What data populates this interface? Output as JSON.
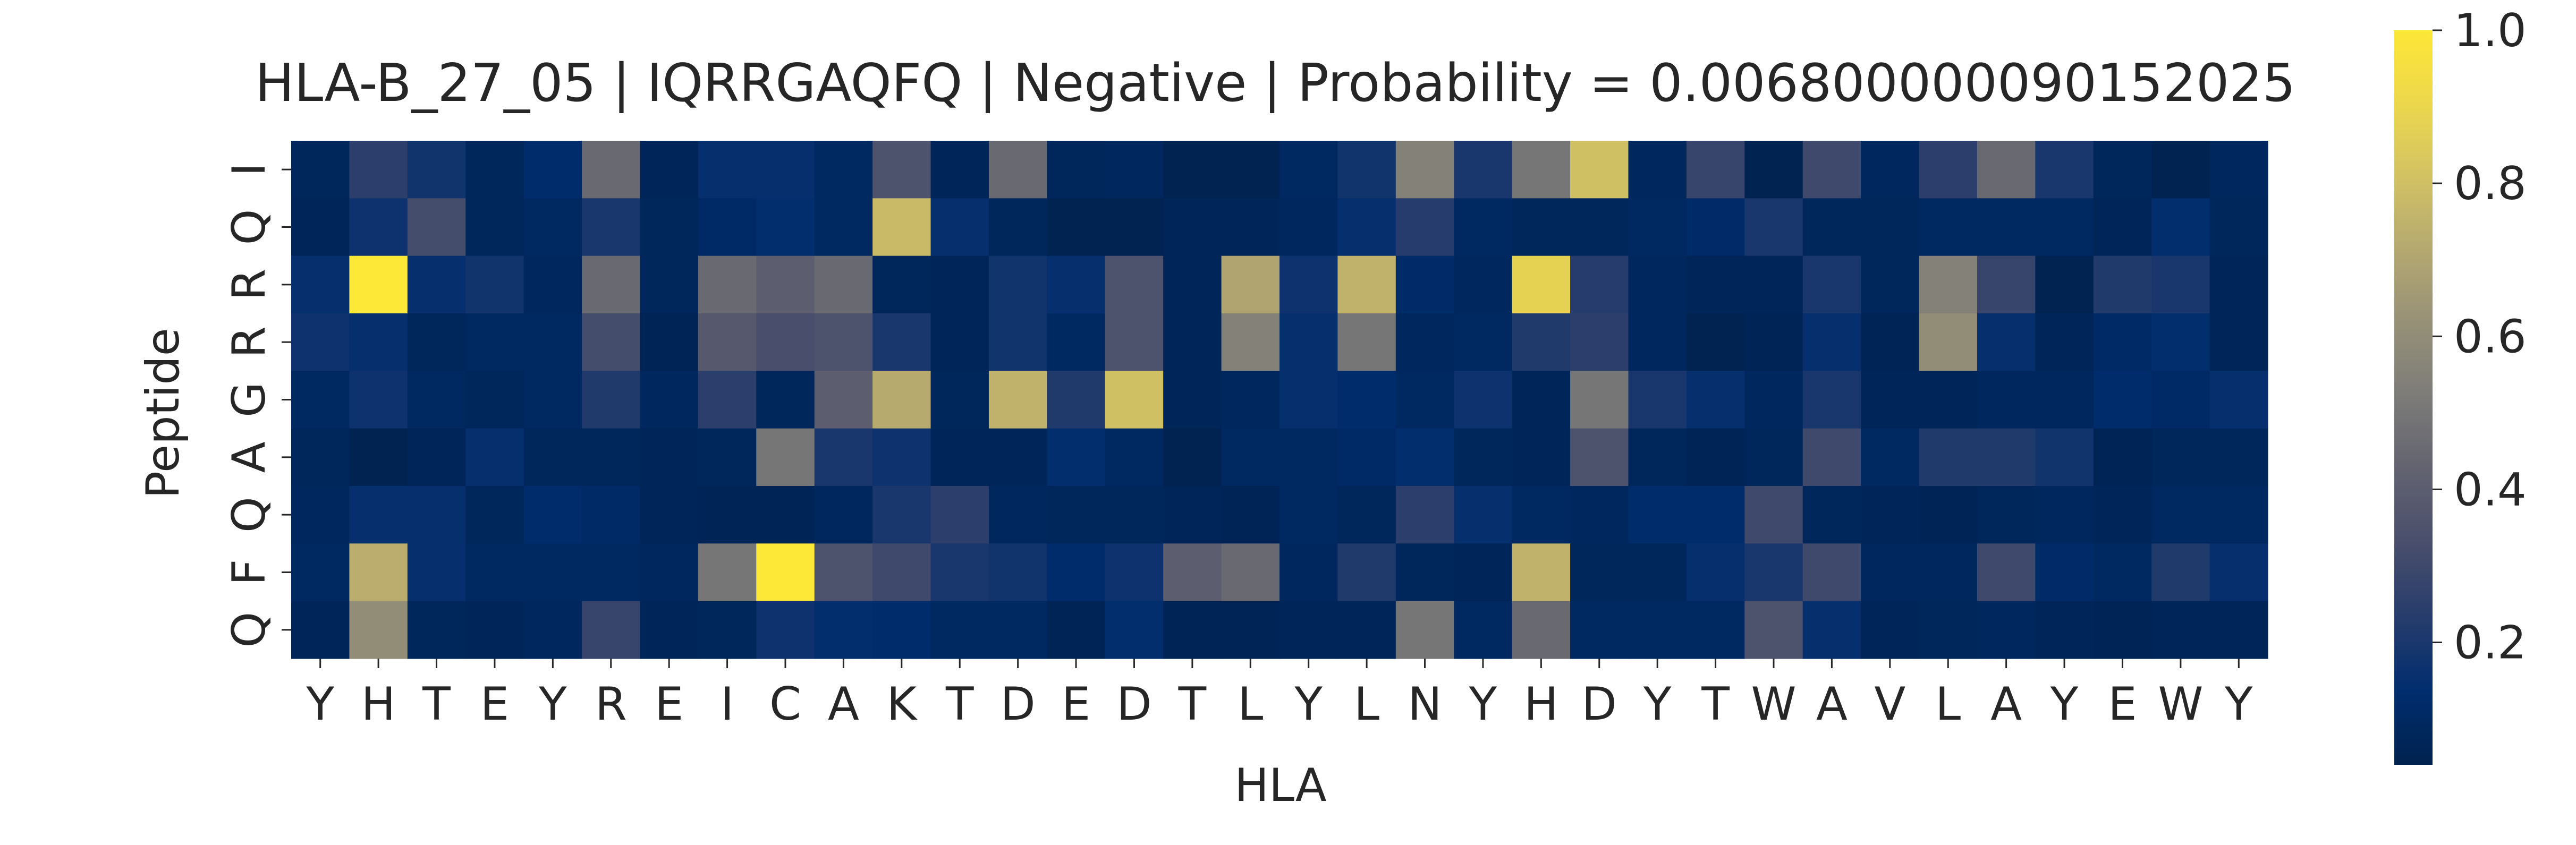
{
  "chart_data": {
    "type": "heatmap",
    "title": "HLA-B_27_05 | IQRRGAQFQ | Negative | Probability = 0.006800000090152025",
    "xlabel": "HLA",
    "ylabel": "Peptide",
    "x": [
      "Y",
      "H",
      "T",
      "E",
      "Y",
      "R",
      "E",
      "I",
      "C",
      "A",
      "K",
      "T",
      "D",
      "E",
      "D",
      "T",
      "L",
      "Y",
      "L",
      "N",
      "Y",
      "H",
      "D",
      "Y",
      "T",
      "W",
      "A",
      "V",
      "L",
      "A",
      "Y",
      "E",
      "W",
      "Y"
    ],
    "y": [
      "I",
      "Q",
      "R",
      "R",
      "G",
      "A",
      "Q",
      "F",
      "Q"
    ],
    "values": [
      [
        0.08,
        0.25,
        0.18,
        0.08,
        0.13,
        0.45,
        0.07,
        0.15,
        0.15,
        0.1,
        0.35,
        0.07,
        0.45,
        0.08,
        0.09,
        0.05,
        0.05,
        0.1,
        0.18,
        0.55,
        0.2,
        0.5,
        0.8,
        0.09,
        0.28,
        0.05,
        0.3,
        0.09,
        0.25,
        0.45,
        0.2,
        0.08,
        0.05,
        0.09
      ],
      [
        0.07,
        0.17,
        0.32,
        0.08,
        0.1,
        0.2,
        0.08,
        0.11,
        0.14,
        0.1,
        0.78,
        0.15,
        0.08,
        0.05,
        0.05,
        0.07,
        0.07,
        0.09,
        0.15,
        0.23,
        0.1,
        0.08,
        0.08,
        0.1,
        0.12,
        0.2,
        0.08,
        0.08,
        0.1,
        0.1,
        0.1,
        0.07,
        0.14,
        0.08
      ],
      [
        0.15,
        1.0,
        0.15,
        0.18,
        0.09,
        0.45,
        0.08,
        0.45,
        0.4,
        0.45,
        0.08,
        0.07,
        0.18,
        0.15,
        0.35,
        0.07,
        0.7,
        0.17,
        0.75,
        0.12,
        0.09,
        0.88,
        0.23,
        0.09,
        0.07,
        0.07,
        0.2,
        0.08,
        0.55,
        0.28,
        0.05,
        0.22,
        0.2,
        0.07
      ],
      [
        0.17,
        0.15,
        0.08,
        0.1,
        0.1,
        0.32,
        0.06,
        0.38,
        0.33,
        0.35,
        0.2,
        0.07,
        0.18,
        0.1,
        0.35,
        0.07,
        0.55,
        0.15,
        0.5,
        0.09,
        0.1,
        0.22,
        0.25,
        0.09,
        0.05,
        0.06,
        0.15,
        0.06,
        0.6,
        0.15,
        0.07,
        0.11,
        0.14,
        0.07
      ],
      [
        0.1,
        0.17,
        0.1,
        0.08,
        0.1,
        0.22,
        0.09,
        0.25,
        0.08,
        0.4,
        0.72,
        0.08,
        0.75,
        0.22,
        0.8,
        0.07,
        0.09,
        0.15,
        0.13,
        0.1,
        0.17,
        0.07,
        0.5,
        0.2,
        0.15,
        0.09,
        0.2,
        0.07,
        0.07,
        0.09,
        0.09,
        0.13,
        0.11,
        0.15
      ],
      [
        0.08,
        0.05,
        0.07,
        0.15,
        0.08,
        0.08,
        0.07,
        0.08,
        0.5,
        0.2,
        0.17,
        0.07,
        0.07,
        0.14,
        0.1,
        0.05,
        0.1,
        0.1,
        0.11,
        0.14,
        0.08,
        0.07,
        0.35,
        0.08,
        0.06,
        0.08,
        0.3,
        0.1,
        0.22,
        0.22,
        0.18,
        0.06,
        0.08,
        0.08
      ],
      [
        0.09,
        0.15,
        0.15,
        0.08,
        0.13,
        0.11,
        0.07,
        0.06,
        0.06,
        0.09,
        0.2,
        0.25,
        0.09,
        0.08,
        0.08,
        0.07,
        0.06,
        0.1,
        0.08,
        0.25,
        0.15,
        0.1,
        0.09,
        0.13,
        0.13,
        0.3,
        0.08,
        0.07,
        0.06,
        0.08,
        0.09,
        0.07,
        0.1,
        0.1
      ],
      [
        0.1,
        0.73,
        0.15,
        0.1,
        0.1,
        0.1,
        0.09,
        0.5,
        1.0,
        0.35,
        0.3,
        0.2,
        0.18,
        0.13,
        0.17,
        0.4,
        0.45,
        0.09,
        0.22,
        0.08,
        0.07,
        0.75,
        0.08,
        0.08,
        0.15,
        0.2,
        0.3,
        0.09,
        0.09,
        0.3,
        0.12,
        0.1,
        0.22,
        0.15
      ],
      [
        0.07,
        0.6,
        0.08,
        0.07,
        0.09,
        0.28,
        0.07,
        0.08,
        0.17,
        0.14,
        0.13,
        0.1,
        0.1,
        0.06,
        0.14,
        0.06,
        0.06,
        0.07,
        0.07,
        0.5,
        0.1,
        0.45,
        0.1,
        0.1,
        0.1,
        0.35,
        0.15,
        0.07,
        0.08,
        0.09,
        0.07,
        0.06,
        0.07,
        0.07
      ]
    ],
    "vmin": 0.04,
    "vmax": 1.0,
    "colormap": "cividis",
    "colorbar": {
      "ticks": [
        0.2,
        0.4,
        0.6,
        0.8,
        1.0
      ],
      "tick_labels": [
        "0.2",
        "0.4",
        "0.6",
        "0.8",
        "1.0"
      ]
    },
    "grid": false,
    "legend": "none"
  }
}
